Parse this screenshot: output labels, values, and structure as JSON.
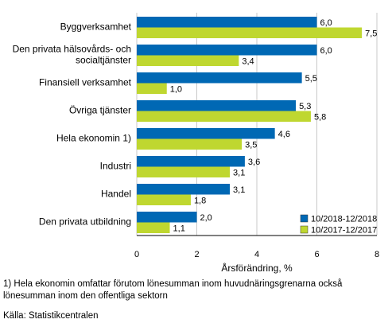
{
  "chart_data": {
    "type": "bar",
    "orientation": "horizontal",
    "categories": [
      "Byggverksamhet",
      [
        "Den privata hälsovårds- och",
        "socialtjänster"
      ],
      "Finansiell verksamhet",
      "Övriga tjänster",
      "Hela ekonomin 1)",
      "Industri",
      "Handel",
      "Den privata utbildning"
    ],
    "series": [
      {
        "name": "10/2018-12/2018",
        "color": "#0068b4",
        "values": [
          6.0,
          6.0,
          5.5,
          5.3,
          4.6,
          3.6,
          3.1,
          2.0
        ],
        "labels": [
          "6,0",
          "6,0",
          "5,5",
          "5,3",
          "4,6",
          "3,6",
          "3,1",
          "2,0"
        ]
      },
      {
        "name": "10/2017-12/2017",
        "color": "#bfd730",
        "values": [
          7.5,
          3.4,
          1.0,
          5.8,
          3.5,
          3.1,
          1.8,
          1.1
        ],
        "labels": [
          "7,5",
          "3,4",
          "1,0",
          "5,8",
          "3,5",
          "3,1",
          "1,8",
          "1,1"
        ]
      }
    ],
    "xlabel": "Årsförändring, %",
    "xlim": [
      0,
      8
    ],
    "xticks": [
      0,
      2,
      4,
      6,
      8
    ],
    "grid": true,
    "legend_position": "bottom-right"
  },
  "footnote": "1) Hela ekonomin omfattar förutom lönesumman inom huvudnäringsgrenarna också lönesumman inom den offentliga sektorn",
  "source": "Källa: Statistikcentralen"
}
